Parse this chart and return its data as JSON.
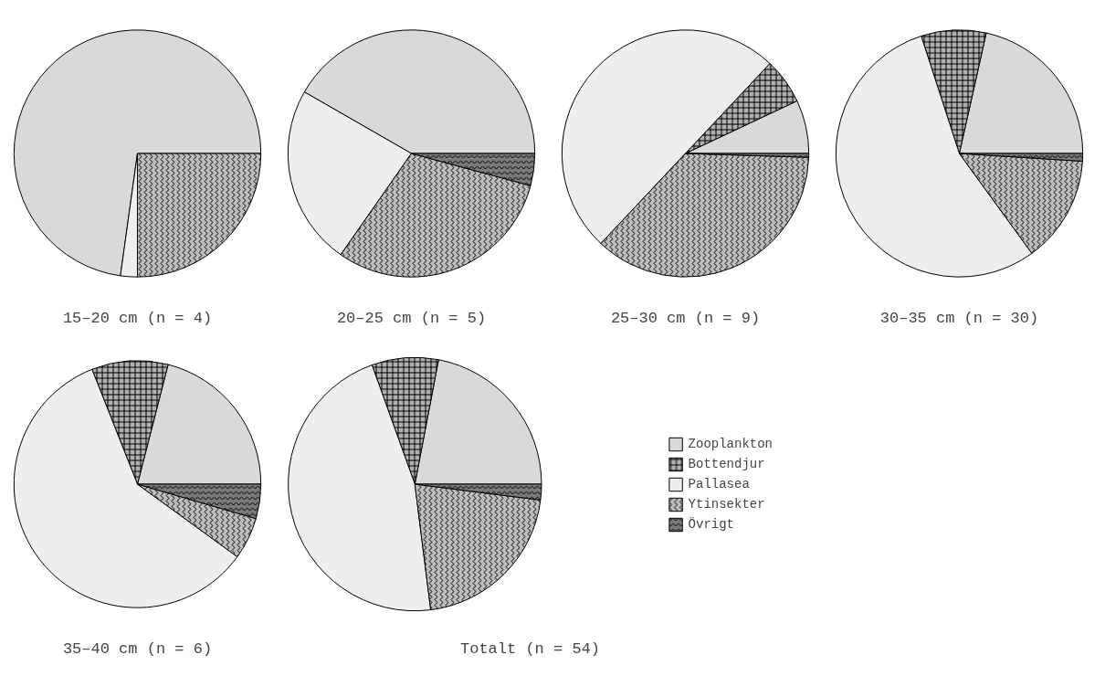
{
  "chart_data": [
    {
      "type": "pie",
      "title": "15–20 cm (n = 4)",
      "categories": [
        null,
        null,
        null,
        null,
        null
      ],
      "values": [
        72.8,
        0,
        2.2,
        25,
        0
      ],
      "colors": [
        "#d9d9d9",
        "#b0b0b0",
        "#eeeeee",
        "#bdbdbd",
        "#7a7a7a"
      ]
    },
    {
      "type": "pie",
      "title": "20–25 cm (n = 5)",
      "categories": [
        null,
        null,
        null,
        null,
        null
      ],
      "values": [
        41.7,
        0,
        23.6,
        30.5,
        4.2
      ],
      "colors": [
        "#d9d9d9",
        "#b0b0b0",
        "#eeeeee",
        "#bdbdbd",
        "#7a7a7a"
      ]
    },
    {
      "type": "pie",
      "title": "25–30 cm (n = 9)",
      "categories": [
        null,
        null,
        null,
        null,
        null
      ],
      "values": [
        7,
        6,
        50,
        36.5,
        0.5
      ],
      "colors": [
        "#d9d9d9",
        "#b0b0b0",
        "#eeeeee",
        "#bdbdbd",
        "#7a7a7a"
      ]
    },
    {
      "type": "pie",
      "title": "30–35 cm (n = 30)",
      "categories": [
        null,
        null,
        null,
        null,
        null
      ],
      "values": [
        21.5,
        8.5,
        55,
        14,
        1
      ],
      "colors": [
        "#d9d9d9",
        "#b0b0b0",
        "#eeeeee",
        "#bdbdbd",
        "#7a7a7a"
      ]
    },
    {
      "type": "pie",
      "title": "35–40 cm (n = 6)",
      "categories": [
        null,
        null,
        null,
        null,
        null
      ],
      "values": [
        21,
        10,
        59,
        5.5,
        4.5
      ],
      "colors": [
        "#d9d9d9",
        "#b0b0b0",
        "#eeeeee",
        "#bdbdbd",
        "#7a7a7a"
      ]
    },
    {
      "type": "pie",
      "title": "Totalt (n = 54)",
      "categories": [
        "Zooplankton",
        "Bottendjur",
        "Pallasea",
        "Ytinsekter",
        "Övrigt"
      ],
      "values": [
        22,
        8.5,
        46.5,
        21,
        2
      ],
      "colors": [
        "#d9d9d9",
        "#b0b0b0",
        "#eeeeee",
        "#bdbdbd",
        "#7a7a7a"
      ],
      "legend": "right"
    }
  ]
}
